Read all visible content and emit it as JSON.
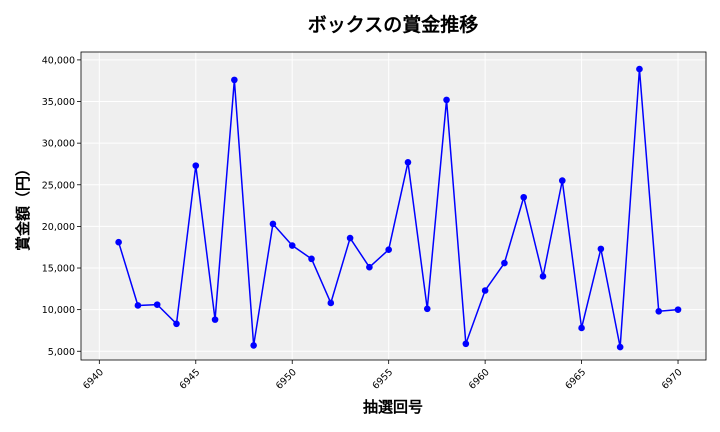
{
  "chart_data": {
    "type": "line",
    "title": "ボックスの賞金推移",
    "xlabel": "抽選回号",
    "ylabel": "賞金額（円）",
    "x": [
      6941,
      6942,
      6943,
      6944,
      6945,
      6946,
      6947,
      6948,
      6949,
      6950,
      6951,
      6952,
      6953,
      6954,
      6955,
      6956,
      6957,
      6958,
      6959,
      6960,
      6961,
      6962,
      6963,
      6964,
      6965,
      6966,
      6967,
      6968,
      6969,
      6970
    ],
    "y": [
      18100,
      10500,
      10600,
      8300,
      27300,
      8800,
      37600,
      5700,
      20300,
      17700,
      16100,
      10800,
      18600,
      15100,
      17200,
      27700,
      10100,
      35200,
      5900,
      12300,
      15600,
      23500,
      14000,
      25500,
      7800,
      17300,
      5500,
      38900,
      9800,
      10000
    ],
    "xlim": [
      6939.05,
      6971.45
    ],
    "ylim": [
      3950,
      40950
    ],
    "xticks": [
      6940,
      6945,
      6950,
      6955,
      6960,
      6965,
      6970
    ],
    "xtick_labels": [
      "6940",
      "6945",
      "6950",
      "6955",
      "6960",
      "6965",
      "6970"
    ],
    "yticks": [
      5000,
      10000,
      15000,
      20000,
      25000,
      30000,
      35000,
      40000
    ],
    "ytick_labels": [
      "5,000",
      "10,000",
      "15,000",
      "20,000",
      "25,000",
      "30,000",
      "35,000",
      "40,000"
    ],
    "grid": true,
    "line_color": "#0000ff",
    "marker_color": "#0000ff",
    "plot_background": "#efefef"
  }
}
